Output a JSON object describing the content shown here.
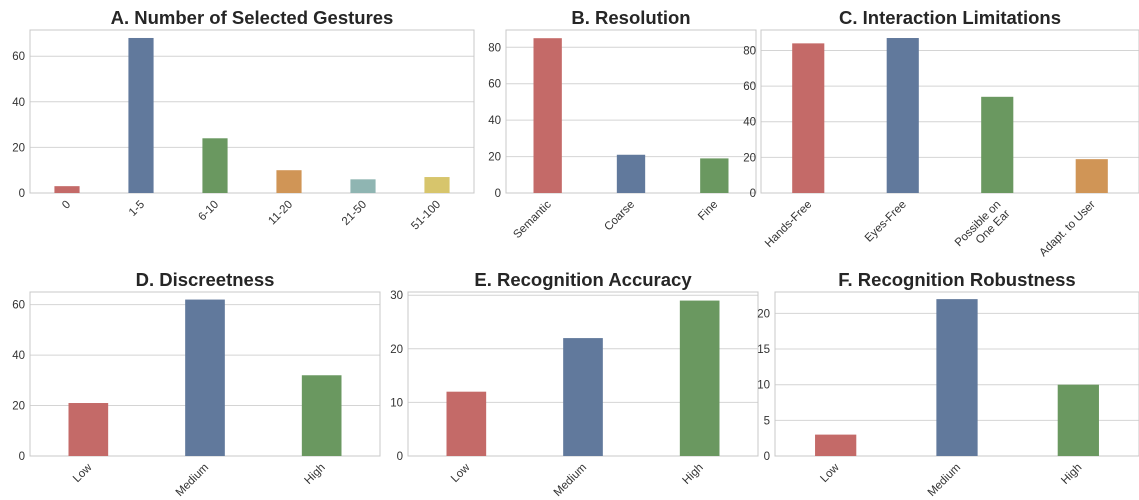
{
  "chart_data": [
    {
      "type": "bar",
      "title": "A. Number of Selected Gestures",
      "categories": [
        "0",
        "1-5",
        "6-10",
        "11-20",
        "21-50",
        "51-100"
      ],
      "values": [
        3,
        68,
        24,
        10,
        6,
        7
      ],
      "colors": [
        "#c46a68",
        "#61799c",
        "#6a9860",
        "#d09556",
        "#8fb5b2",
        "#d7c56c"
      ],
      "yticks": [
        0,
        20,
        40,
        60
      ],
      "ylim": [
        0,
        71.5
      ],
      "grid": true
    },
    {
      "type": "bar",
      "title": "B. Resolution",
      "categories": [
        "Semantic",
        "Coarse",
        "Fine"
      ],
      "values": [
        85,
        21,
        19
      ],
      "colors": [
        "#c46a68",
        "#61799c",
        "#6a9860"
      ],
      "yticks": [
        0,
        20,
        40,
        60,
        80
      ],
      "ylim": [
        0,
        89.5
      ],
      "grid": true
    },
    {
      "type": "bar",
      "title": "C. Interaction Limitations",
      "categories": [
        "Hands-Free",
        "Eyes-Free",
        "Possible on\nOne Ear",
        "Adapt. to User"
      ],
      "values": [
        84,
        87,
        54,
        19
      ],
      "colors": [
        "#c46a68",
        "#61799c",
        "#6a9860",
        "#d09556"
      ],
      "yticks": [
        0,
        20,
        40,
        60,
        80
      ],
      "ylim": [
        0,
        91.5
      ],
      "grid": true
    },
    {
      "type": "bar",
      "title": "D. Discreetness",
      "categories": [
        "Low",
        "Medium",
        "High"
      ],
      "values": [
        21,
        62,
        32
      ],
      "colors": [
        "#c46a68",
        "#61799c",
        "#6a9860"
      ],
      "yticks": [
        0,
        20,
        40,
        60
      ],
      "ylim": [
        0,
        65
      ],
      "grid": true
    },
    {
      "type": "bar",
      "title": "E. Recognition Accuracy",
      "categories": [
        "Low",
        "Medium",
        "High"
      ],
      "values": [
        12,
        22,
        29
      ],
      "colors": [
        "#c46a68",
        "#61799c",
        "#6a9860"
      ],
      "yticks": [
        0,
        10,
        20,
        30
      ],
      "ylim": [
        0,
        30.6
      ],
      "grid": true
    },
    {
      "type": "bar",
      "title": "F. Recognition Robustness",
      "categories": [
        "Low",
        "Medium",
        "High"
      ],
      "values": [
        3,
        22,
        10
      ],
      "colors": [
        "#c46a68",
        "#61799c",
        "#6a9860"
      ],
      "yticks": [
        0,
        5,
        10,
        15,
        20
      ],
      "ylim": [
        0,
        23
      ],
      "grid": true
    }
  ]
}
